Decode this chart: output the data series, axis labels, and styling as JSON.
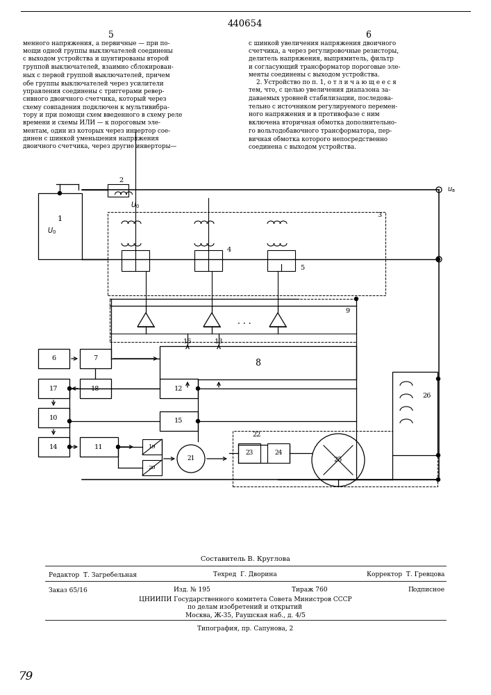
{
  "page_number_top": "440654",
  "col_left_num": "5",
  "col_right_num": "6",
  "text_left": "менного напряжения, а первичные — при по-\nмощи одной группы выключателей соединены\nс выходом устройства и шунтированы второй\nгруппой выключателей, взаимно сблокирован-\nных с первой группой выключателей, причем\nобе группы выключателей через усилители\nуправления соединены с триггерами ревер-\nсивного двоичного счетчика, который через\nсхему совпадения подключен к мультивибра-\nтору и при помощи схем введенного в схему реле\nвремени и схемы ИЛИ — к пороговым эле-\nментам, один из которых через инвертор сое-\nдинен с шинкой уменьшения напряжения\nдвоичного счетчика, через другие инверторы—",
  "text_right": "с шинкой увеличения напряжения двоичного\nсчетчика, а через регулировочные резисторы,\nделитель напряжения, выпрямитель, фильтр\nи согласующий трансформатор пороговые эле-\nменты соединены с выходом устройства.\n    2. Устройство по п. 1, о т л и ч а ю щ е е с я\nтем, что, с целью увеличения диапазона за-\nдаваемых уровней стабилизации, последова-\nтельно с источником регулируемого перемен-\nного напряжения и в противофазе с ним\nвключена вторичная обмотка дополнительно-\nго вольтодобавочного трансформатора, пер-\nвичная обмотка которого непосредственно\nсоединена с выходом устройства.",
  "composer_label": "Составитель В. Круглова",
  "editor_label": "Редактор  Т. Загребельная",
  "techrep_label": "Техред  Г. Дворина",
  "corrector_label": "Корректор  Т. Гревцова",
  "order_label": "Заказ 65/16",
  "edition_label": "Изд. № 195",
  "circulation_label": "Тираж 760",
  "subscription_label": "Подписное",
  "organization_line1": "ЦНИИПИ Государственного комитета Совета Министров СССР",
  "organization_line2": "по делам изобретений и открытий",
  "organization_line3": "Москва, Ж-35, Раушская наб., д. 4/5",
  "print_label": "Типография, пр. Сапунова, 2",
  "page_number_bottom": "79",
  "bg_color": "#ffffff",
  "text_color": "#000000"
}
